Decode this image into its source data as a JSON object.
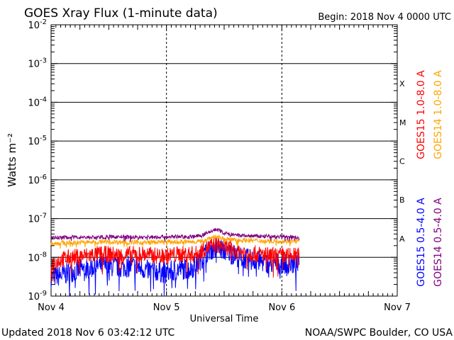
{
  "chart_data": {
    "type": "line",
    "title": "GOES Xray Flux (1-minute data)",
    "begin_label": "Begin:  2018 Nov 4 0000 UTC",
    "xlabel": "Universal Time",
    "ylabel": "Watts m⁻²",
    "y_scale": "log",
    "ylim": [
      1e-09,
      0.01
    ],
    "y_ticks": [
      {
        "base": "10",
        "exp": "-9"
      },
      {
        "base": "10",
        "exp": "-8"
      },
      {
        "base": "10",
        "exp": "-7"
      },
      {
        "base": "10",
        "exp": "-6"
      },
      {
        "base": "10",
        "exp": "-5"
      },
      {
        "base": "10",
        "exp": "-4"
      },
      {
        "base": "10",
        "exp": "-3"
      },
      {
        "base": "10",
        "exp": "-2"
      }
    ],
    "x_ticks": [
      "Nov 4",
      "Nov 5",
      "Nov 6",
      "Nov 7"
    ],
    "x_range_days": [
      0,
      3
    ],
    "flare_classes": [
      {
        "label": "A",
        "flux": 1e-08
      },
      {
        "label": "B",
        "flux": 1e-07
      },
      {
        "label": "C",
        "flux": 1e-06
      },
      {
        "label": "M",
        "flux": 1e-05
      },
      {
        "label": "X",
        "flux": 0.0001
      }
    ],
    "series": [
      {
        "name": "GOES15 1.0-8.0 A",
        "color": "#ff0000",
        "x": [
          0,
          0.1,
          0.2,
          0.3,
          0.4,
          0.5,
          0.6,
          0.7,
          0.8,
          0.9,
          1.0,
          1.1,
          1.2,
          1.25,
          1.28,
          1.32,
          1.38,
          1.42,
          1.5,
          1.6,
          1.7,
          1.8,
          1.9,
          2.0,
          2.15
        ],
        "y": [
          7e-09,
          9e-09,
          1e-08,
          1.1e-08,
          1.2e-08,
          1.2e-08,
          1.1e-08,
          1.2e-08,
          1.2e-08,
          1.1e-08,
          1.1e-08,
          1.2e-08,
          1.2e-08,
          1.2e-08,
          1.3e-08,
          1.6e-08,
          1.9e-08,
          2.1e-08,
          1.9e-08,
          1.5e-08,
          1.3e-08,
          1.2e-08,
          1.1e-08,
          1.1e-08,
          1.1e-08
        ]
      },
      {
        "name": "GOES14 1.0-8.0 A",
        "color": "#ffa500",
        "x": [
          0,
          0.2,
          0.4,
          0.6,
          0.8,
          1.0,
          1.2,
          1.3,
          1.38,
          1.42,
          1.5,
          1.6,
          1.8,
          2.0,
          2.15
        ],
        "y": [
          2.3e-08,
          2.4e-08,
          2.5e-08,
          2.5e-08,
          2.4e-08,
          2.5e-08,
          2.5e-08,
          2.6e-08,
          3.2e-08,
          3.4e-08,
          3e-08,
          2.8e-08,
          2.7e-08,
          2.6e-08,
          2.6e-08
        ]
      },
      {
        "name": "GOES15 0.5-4.0 A",
        "color": "#0000ff",
        "x": [
          0,
          0.1,
          0.2,
          0.3,
          0.4,
          0.5,
          0.6,
          0.7,
          0.8,
          0.9,
          1.0,
          1.1,
          1.2,
          1.25,
          1.3,
          1.35,
          1.4,
          1.45,
          1.5,
          1.6,
          1.7,
          1.8,
          1.9,
          2.0,
          2.15
        ],
        "y": [
          3e-09,
          3.5e-09,
          4.5e-09,
          5e-09,
          6e-09,
          6e-09,
          5.5e-09,
          6e-09,
          5e-09,
          4.5e-09,
          4e-09,
          5e-09,
          5e-09,
          6e-09,
          9e-09,
          1.4e-08,
          1.7e-08,
          1.8e-08,
          1.5e-08,
          1.1e-08,
          9e-09,
          8e-09,
          7e-09,
          7e-09,
          6.5e-09
        ]
      },
      {
        "name": "GOES14 0.5-4.0 A",
        "color": "#800080",
        "x": [
          0,
          0.2,
          0.4,
          0.6,
          0.8,
          1.0,
          1.2,
          1.3,
          1.38,
          1.42,
          1.46,
          1.5,
          1.6,
          1.8,
          2.0,
          2.15
        ],
        "y": [
          3.2e-08,
          3.3e-08,
          3.3e-08,
          3.4e-08,
          3.3e-08,
          3.4e-08,
          3.4e-08,
          3.6e-08,
          4.6e-08,
          5.2e-08,
          5e-08,
          4.2e-08,
          3.7e-08,
          3.5e-08,
          3.4e-08,
          3.3e-08
        ]
      }
    ]
  },
  "footer": {
    "updated": "Updated 2018 Nov  6 03:42:12 UTC",
    "credit": "NOAA/SWPC Boulder, CO USA"
  }
}
